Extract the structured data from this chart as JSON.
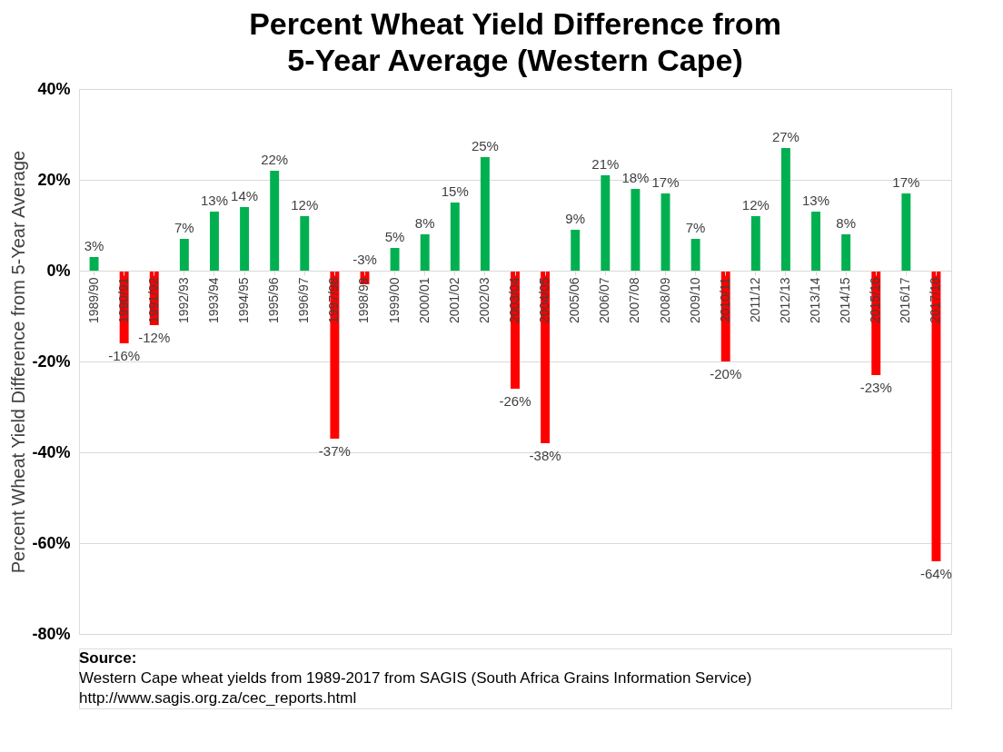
{
  "chart_data": {
    "type": "bar",
    "title": "Percent Wheat Yield Difference from 5-Year Average (Western Cape)",
    "ylabel": "Percent Wheat Yield Difference from 5-Year Average",
    "categories": [
      "1989/90",
      "1990/91",
      "1991/92",
      "1992/93",
      "1993/94",
      "1994/95",
      "1995/96",
      "1996/97",
      "1997/98",
      "1998/99",
      "1999/00",
      "2000/01",
      "2001/02",
      "2002/03",
      "2003/04",
      "2004/05",
      "2005/06",
      "2006/07",
      "2007/08",
      "2008/09",
      "2009/10",
      "2010/11",
      "2011/12",
      "2012/13",
      "2013/14",
      "2014/15",
      "2015/16",
      "2016/17",
      "2017/18"
    ],
    "values": [
      3,
      -16,
      -12,
      7,
      13,
      14,
      22,
      12,
      -37,
      -3,
      5,
      8,
      15,
      25,
      -26,
      -38,
      9,
      21,
      18,
      17,
      7,
      -20,
      12,
      27,
      13,
      8,
      -23,
      17,
      -64
    ],
    "colors": [
      "#00b050",
      "#ff0000",
      "#ff0000",
      "#00b050",
      "#00b050",
      "#00b050",
      "#00b050",
      "#00b050",
      "#ff0000",
      "#ff0000",
      "#00b050",
      "#00b050",
      "#00b050",
      "#00b050",
      "#ff0000",
      "#ff0000",
      "#00b050",
      "#00b050",
      "#00b050",
      "#00b050",
      "#00b050",
      "#ff0000",
      "#00b050",
      "#00b050",
      "#00b050",
      "#00b050",
      "#ff0000",
      "#00b050",
      "#ff0000"
    ],
    "value_labels": [
      "3%",
      "-16%",
      "-12%",
      "7%",
      "13%",
      "14%",
      "22%",
      "12%",
      "-37%",
      "-3%",
      "5%",
      "8%",
      "15%",
      "25%",
      "-26%",
      "-38%",
      "9%",
      "21%",
      "18%",
      "17%",
      "7%",
      "-20%",
      "12%",
      "27%",
      "13%",
      "8%",
      "-23%",
      "17%",
      "-64%"
    ],
    "ylim": [
      -80,
      40
    ],
    "yticks": [
      {
        "value": -80,
        "label": "-80%"
      },
      {
        "value": -60,
        "label": "-60%"
      },
      {
        "value": -40,
        "label": "-40%"
      },
      {
        "value": -20,
        "label": "-20%"
      },
      {
        "value": 0,
        "label": "0%"
      },
      {
        "value": 20,
        "label": "20%"
      },
      {
        "value": 40,
        "label": "40%"
      }
    ],
    "grid": "y",
    "annotations": [
      "Source:",
      "Western Cape wheat yields from 1989-2017 from SAGIS (South Africa Grains Information Service)",
      "http://www.sagis.org.za/cec_reports.html"
    ]
  }
}
